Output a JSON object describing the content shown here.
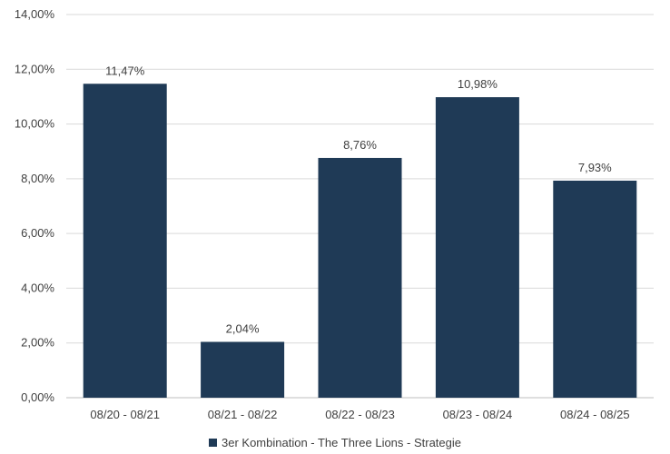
{
  "chart_data": {
    "type": "bar",
    "categories": [
      "08/20 - 08/21",
      "08/21 - 08/22",
      "08/22 - 08/23",
      "08/23 - 08/24",
      "08/24 - 08/25"
    ],
    "series": [
      {
        "name": "3er Kombination - The Three Lions - Strategie",
        "values": [
          11.47,
          2.04,
          8.76,
          10.98,
          7.93
        ],
        "labels": [
          "11,47%",
          "2,04%",
          "8,76%",
          "10,98%",
          "7,93%"
        ]
      }
    ],
    "y_ticks": [
      "0,00%",
      "2,00%",
      "4,00%",
      "6,00%",
      "8,00%",
      "10,00%",
      "12,00%",
      "14,00%"
    ],
    "ylim": [
      0,
      14
    ],
    "ylabel": "",
    "xlabel": "",
    "title": "",
    "grid": true,
    "legend_position": "bottom",
    "bar_color": "#1f3a56",
    "grid_color": "#d9d9d9"
  }
}
